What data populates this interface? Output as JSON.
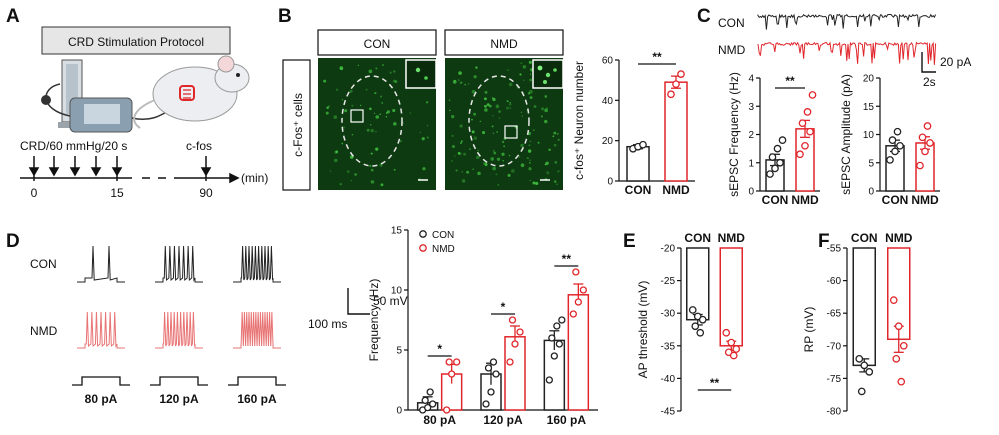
{
  "colors": {
    "con": "#222222",
    "nmd": "#e0262b",
    "micro_bg": "#0b2a0b",
    "micro_green": "#3fbf3f"
  },
  "panel_letters": {
    "a": "A",
    "b": "B",
    "c": "C",
    "d": "D",
    "e": "E",
    "f": "F"
  },
  "panel_a": {
    "protocol_title": "CRD Stimulation Protocol",
    "crd_label": "CRD/60 mmHg/20 s",
    "cfos_label": "c-fos",
    "unit_label": "(min)",
    "ticks": [
      "0",
      "15",
      "90"
    ]
  },
  "panel_b": {
    "side_label": "c-Fos⁺ cells",
    "con_header": "CON",
    "nmd_header": "NMD"
  },
  "panel_c": {
    "trace_con_label": "CON",
    "trace_nmd_label": "NMD",
    "scale_y": "20 pA",
    "scale_x": "2s"
  },
  "panel_d": {
    "row_con": "CON",
    "row_nmd": "NMD",
    "scale_mv": "50 mV",
    "scale_ms": "100 ms",
    "steps": [
      "80 pA",
      "120 pA",
      "160 pA"
    ]
  },
  "chart_data": [
    {
      "id": "b",
      "type": "bar",
      "categories": [
        "CON",
        "NMD"
      ],
      "values": [
        17,
        49
      ],
      "errors": [
        1,
        3
      ],
      "points": [
        [
          16,
          17,
          18
        ],
        [
          43,
          48,
          53
        ]
      ],
      "ylabel": "c-fos⁺ Neuron number",
      "ylim": [
        0,
        60
      ],
      "yticks": [
        "0",
        "20",
        "40",
        "60"
      ],
      "significance": "**"
    },
    {
      "id": "c-frequency",
      "type": "bar",
      "categories": [
        "CON",
        "NMD"
      ],
      "values": [
        1.1,
        2.2
      ],
      "errors": [
        0.2,
        0.3
      ],
      "points": [
        [
          0.6,
          0.8,
          1.0,
          1.2,
          1.5,
          1.8
        ],
        [
          1.3,
          1.6,
          2.1,
          2.4,
          2.8,
          3.4
        ]
      ],
      "ylabel": "sEPSC Frequency (Hz)",
      "ylim": [
        0,
        4
      ],
      "yticks": [
        "0",
        "1",
        "2",
        "3",
        "4"
      ],
      "significance": "**"
    },
    {
      "id": "c-amplitude",
      "type": "bar",
      "categories": [
        "CON",
        "NMD"
      ],
      "values": [
        8,
        8.5
      ],
      "errors": [
        1,
        1.1
      ],
      "points": [
        [
          5.5,
          7,
          8,
          9,
          10.5
        ],
        [
          4.5,
          7,
          8.5,
          9.5,
          11.5
        ]
      ],
      "ylabel": "sEPSC Amplitude (pA)",
      "ylim": [
        0,
        20
      ],
      "yticks": [
        "0",
        "5",
        "10",
        "15",
        "20"
      ],
      "significance": ""
    },
    {
      "id": "d",
      "type": "bar",
      "categories": [
        "80 pA",
        "120 pA",
        "160 pA"
      ],
      "series": [
        {
          "name": "CON",
          "values": [
            0.6,
            3.0,
            5.8
          ],
          "errors": [
            0.5,
            0.9,
            0.8
          ],
          "points": [
            [
              0,
              0.2,
              0.5,
              0.8,
              1.5
            ],
            [
              0.5,
              1.5,
              3,
              3.5,
              4
            ],
            [
              2.5,
              4.5,
              5.5,
              6,
              7,
              7.5
            ]
          ]
        },
        {
          "name": "NMD",
          "values": [
            3.0,
            6.1,
            9.6
          ],
          "errors": [
            0.8,
            0.9,
            0.9
          ],
          "points": [
            [
              0,
              3,
              4,
              4
            ],
            [
              4,
              5.5,
              6.5,
              7.5
            ],
            [
              8,
              9,
              10,
              11.5
            ]
          ]
        }
      ],
      "ylabel": "Frequency (Hz)",
      "ylim": [
        0,
        15
      ],
      "yticks": [
        "0",
        "5",
        "10",
        "15"
      ],
      "significance": [
        "*",
        "*",
        "**"
      ]
    },
    {
      "id": "e",
      "type": "bar",
      "categories": [
        "CON",
        "NMD"
      ],
      "values": [
        -31,
        -35
      ],
      "errors": [
        0.8,
        0.7
      ],
      "points": [
        [
          -29.5,
          -30.5,
          -31,
          -32,
          -33
        ],
        [
          -33,
          -34.5,
          -35.5,
          -36,
          -36.5
        ]
      ],
      "ylabel": "AP threshold (mV)",
      "ylim": [
        -45,
        -20
      ],
      "yticks": [
        "-20",
        "-25",
        "-30",
        "-35",
        "-40",
        "-45"
      ],
      "significance": "**"
    },
    {
      "id": "f",
      "type": "bar",
      "categories": [
        "CON",
        "NMD"
      ],
      "values": [
        -73,
        -69
      ],
      "errors": [
        1,
        2
      ],
      "points": [
        [
          -72,
          -73,
          -74,
          -77
        ],
        [
          -63,
          -67,
          -70,
          -72,
          -75.5
        ]
      ],
      "ylabel": "RP (mV)",
      "ylim": [
        -80,
        -55
      ],
      "yticks": [
        "-55",
        "-60",
        "-65",
        "-70",
        "-75",
        "-80"
      ],
      "significance": ""
    }
  ]
}
